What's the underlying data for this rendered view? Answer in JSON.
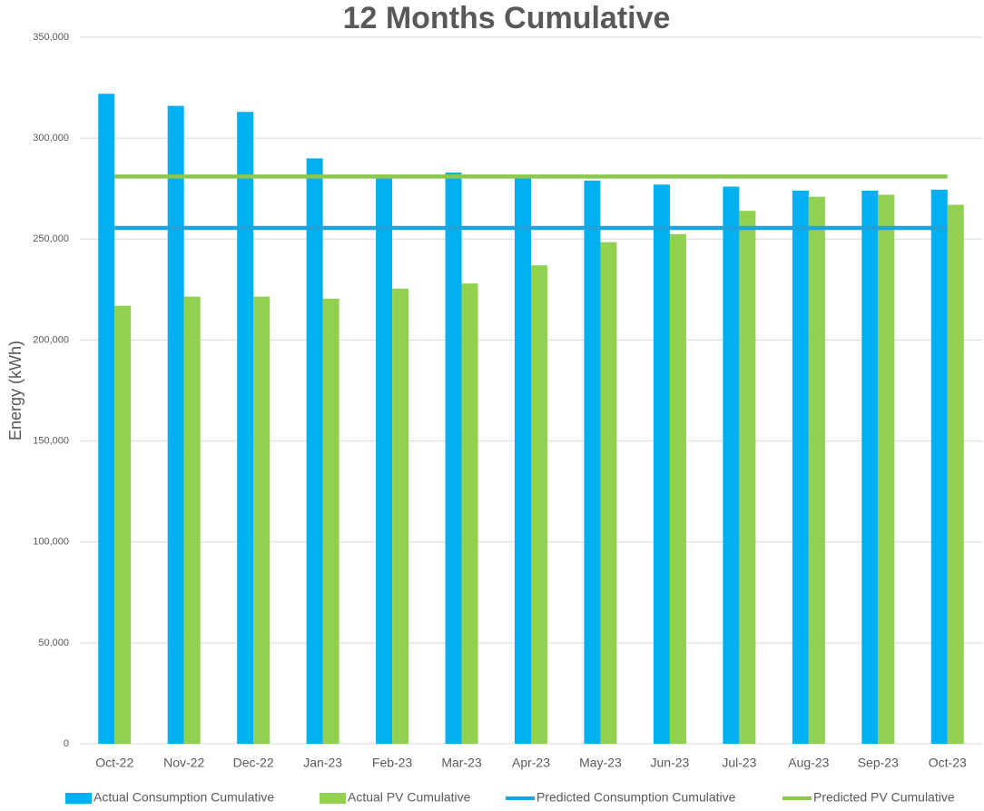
{
  "chart_data": {
    "type": "bar",
    "title": "12 Months Cumulative",
    "y_label": "Energy (kWh)",
    "categories": [
      "Oct-22",
      "Nov-22",
      "Dec-22",
      "Jan-23",
      "Feb-23",
      "Mar-23",
      "Apr-23",
      "May-23",
      "Jun-23",
      "Jul-23",
      "Aug-23",
      "Sep-23",
      "Oct-23"
    ],
    "series": [
      {
        "name": "Actual Consumption Cumulative",
        "type": "bar",
        "color": "#00b0f0",
        "values": [
          322000,
          316000,
          313000,
          290000,
          280000,
          283000,
          281000,
          279000,
          277000,
          276000,
          274000,
          274000,
          274500
        ]
      },
      {
        "name": "Actual PV Cumulative",
        "type": "bar",
        "color": "#92d050",
        "values": [
          217000,
          221500,
          221500,
          220500,
          225500,
          228000,
          237000,
          248500,
          252500,
          264000,
          271000,
          272000,
          267000
        ]
      },
      {
        "name": "Predicted Consumption Cumulative",
        "type": "line",
        "color": "#1ea3dd",
        "values": [
          255500,
          255500,
          255500,
          255500,
          255500,
          255500,
          255500,
          255500,
          255500,
          255500,
          255500,
          255500,
          255500
        ]
      },
      {
        "name": "Predicted PV Cumulative",
        "type": "line",
        "color": "#8cc84f",
        "values": [
          281000,
          281000,
          281000,
          281000,
          281000,
          281000,
          281000,
          281000,
          281000,
          281000,
          281000,
          281000,
          281000
        ]
      }
    ],
    "ylim": [
      0,
      350000
    ],
    "yticks": [
      0,
      {
        "value": 50000,
        "label": "50,000"
      },
      {
        "value": 100000,
        "label": "100,000"
      },
      {
        "value": 150000,
        "label": "150,000"
      },
      {
        "value": 200000,
        "label": "200,000"
      },
      {
        "value": 250000,
        "label": "250,000"
      },
      {
        "value": 300000,
        "label": "300,000"
      },
      {
        "value": 350000,
        "label": "350,000"
      }
    ],
    "grid": true,
    "legend": "bottom"
  }
}
